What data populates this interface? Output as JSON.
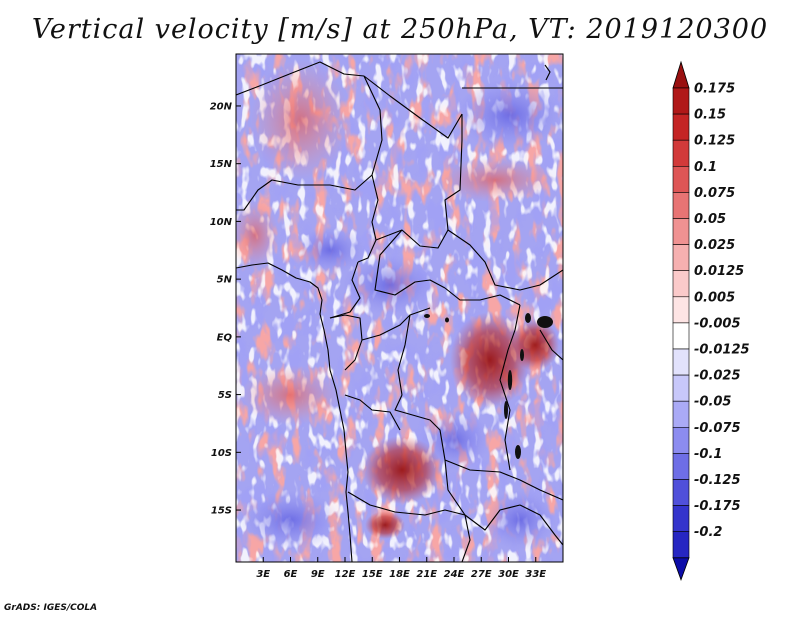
{
  "title": "Vertical velocity [m/s] at 250hPa, VT: 2019120300",
  "credit": "GrADS: IGES/COLA",
  "map": {
    "lon_range": [
      0,
      36
    ],
    "lat_range": [
      -19.5,
      24.5
    ],
    "lat_ticks": [
      {
        "value": 20,
        "label": "20N"
      },
      {
        "value": 15,
        "label": "15N"
      },
      {
        "value": 10,
        "label": "10N"
      },
      {
        "value": 5,
        "label": "5N"
      },
      {
        "value": 0,
        "label": "EQ"
      },
      {
        "value": -5,
        "label": "5S"
      },
      {
        "value": -10,
        "label": "10S"
      },
      {
        "value": -15,
        "label": "15S"
      }
    ],
    "lon_ticks": [
      {
        "value": 3,
        "label": "3E"
      },
      {
        "value": 6,
        "label": "6E"
      },
      {
        "value": 9,
        "label": "9E"
      },
      {
        "value": 12,
        "label": "12E"
      },
      {
        "value": 15,
        "label": "15E"
      },
      {
        "value": 18,
        "label": "18E"
      },
      {
        "value": 21,
        "label": "21E"
      },
      {
        "value": 24,
        "label": "24E"
      },
      {
        "value": 27,
        "label": "27E"
      },
      {
        "value": 30,
        "label": "30E"
      },
      {
        "value": 33,
        "label": "33E"
      }
    ]
  },
  "colorbar": {
    "levels": [
      {
        "label": "0.175",
        "color": "#b01818"
      },
      {
        "label": "0.15",
        "color": "#c42424"
      },
      {
        "label": "0.125",
        "color": "#d23a3a"
      },
      {
        "label": "0.1",
        "color": "#de5656"
      },
      {
        "label": "0.075",
        "color": "#e87474"
      },
      {
        "label": "0.05",
        "color": "#f09292"
      },
      {
        "label": "0.025",
        "color": "#f6b0b0"
      },
      {
        "label": "0.0125",
        "color": "#fbcaca"
      },
      {
        "label": "0.005",
        "color": "#fde4e4"
      },
      {
        "label": "-0.005",
        "color": "#ffffff"
      },
      {
        "label": "-0.0125",
        "color": "#e2e2fc"
      },
      {
        "label": "-0.025",
        "color": "#c8c8fa"
      },
      {
        "label": "-0.05",
        "color": "#aaaaf6"
      },
      {
        "label": "-0.075",
        "color": "#8c8cf0"
      },
      {
        "label": "-0.1",
        "color": "#6e6ee6"
      },
      {
        "label": "-0.125",
        "color": "#5050da"
      },
      {
        "label": "-0.175",
        "color": "#3434cc"
      },
      {
        "label": "-0.2",
        "color": "#1c1cba"
      }
    ],
    "top_triangle_color": "#991010",
    "bottom_triangle_color": "#0c0ca8",
    "bottom_bin_color": "#2626c2"
  }
}
